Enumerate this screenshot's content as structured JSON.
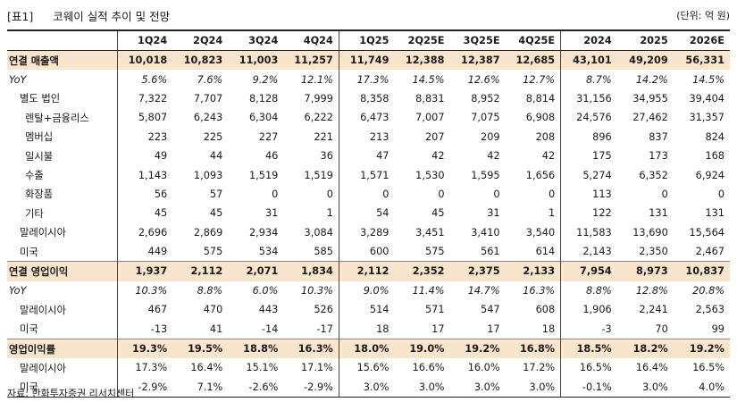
{
  "header": {
    "tag": "[표1]",
    "title": "코웨이 실적 추이 및 전망",
    "unit": "(단위: 억 원)"
  },
  "columns": [
    "",
    "1Q24",
    "2Q24",
    "3Q24",
    "4Q24",
    "1Q25",
    "2Q25E",
    "3Q25E",
    "4Q25E",
    "2024",
    "2025",
    "2026E"
  ],
  "rows": [
    {
      "label": "연결 매출액",
      "style": "hl",
      "indent": 0,
      "values": [
        "10,018",
        "10,823",
        "11,003",
        "11,257",
        "11,749",
        "12,388",
        "12,387",
        "12,685",
        "43,101",
        "49,209",
        "56,331"
      ]
    },
    {
      "label": "YoY",
      "style": "yoy",
      "indent": 0,
      "values": [
        "5.6%",
        "7.6%",
        "9.2%",
        "12.1%",
        "17.3%",
        "14.5%",
        "12.6%",
        "12.7%",
        "8.7%",
        "14.2%",
        "14.5%"
      ]
    },
    {
      "label": "별도 법인",
      "style": "",
      "indent": 1,
      "values": [
        "7,322",
        "7,707",
        "8,128",
        "7,999",
        "8,358",
        "8,831",
        "8,952",
        "8,814",
        "31,156",
        "34,955",
        "39,404"
      ]
    },
    {
      "label": "렌탈+금융리스",
      "style": "",
      "indent": 2,
      "values": [
        "5,807",
        "6,243",
        "6,304",
        "6,222",
        "6,473",
        "7,007",
        "7,075",
        "6,908",
        "24,576",
        "27,462",
        "31,357"
      ]
    },
    {
      "label": "멤버십",
      "style": "",
      "indent": 2,
      "values": [
        "223",
        "225",
        "227",
        "221",
        "213",
        "207",
        "209",
        "208",
        "896",
        "837",
        "824"
      ]
    },
    {
      "label": "일시불",
      "style": "",
      "indent": 2,
      "values": [
        "49",
        "44",
        "46",
        "36",
        "47",
        "42",
        "42",
        "42",
        "175",
        "173",
        "168"
      ]
    },
    {
      "label": "수출",
      "style": "",
      "indent": 2,
      "values": [
        "1,143",
        "1,093",
        "1,519",
        "1,519",
        "1,571",
        "1,530",
        "1,595",
        "1,656",
        "5,274",
        "6,352",
        "6,924"
      ]
    },
    {
      "label": "화장품",
      "style": "",
      "indent": 2,
      "values": [
        "56",
        "57",
        "0",
        "0",
        "0",
        "0",
        "0",
        "0",
        "113",
        "0",
        "0"
      ]
    },
    {
      "label": "기타",
      "style": "",
      "indent": 2,
      "values": [
        "45",
        "45",
        "31",
        "1",
        "54",
        "45",
        "31",
        "1",
        "122",
        "131",
        "131"
      ]
    },
    {
      "label": "말레이시아",
      "style": "",
      "indent": 1,
      "values": [
        "2,696",
        "2,869",
        "2,934",
        "3,084",
        "3,289",
        "3,451",
        "3,410",
        "3,540",
        "11,583",
        "13,690",
        "15,564"
      ]
    },
    {
      "label": "미국",
      "style": "",
      "indent": 1,
      "values": [
        "449",
        "575",
        "534",
        "585",
        "600",
        "575",
        "561",
        "614",
        "2,143",
        "2,350",
        "2,467"
      ]
    },
    {
      "label": "연결 영업이익",
      "style": "hl",
      "indent": 0,
      "values": [
        "1,937",
        "2,112",
        "2,071",
        "1,834",
        "2,112",
        "2,352",
        "2,375",
        "2,133",
        "7,954",
        "8,973",
        "10,837"
      ]
    },
    {
      "label": "YoY",
      "style": "yoy",
      "indent": 0,
      "values": [
        "10.3%",
        "8.8%",
        "6.0%",
        "10.3%",
        "9.0%",
        "11.4%",
        "14.7%",
        "16.3%",
        "8.8%",
        "12.8%",
        "20.8%"
      ]
    },
    {
      "label": "말레이시아",
      "style": "",
      "indent": 1,
      "values": [
        "467",
        "470",
        "443",
        "526",
        "514",
        "571",
        "547",
        "608",
        "1,906",
        "2,241",
        "2,563"
      ]
    },
    {
      "label": "미국",
      "style": "",
      "indent": 1,
      "values": [
        "-13",
        "41",
        "-14",
        "-17",
        "18",
        "17",
        "17",
        "18",
        "-3",
        "70",
        "99"
      ]
    },
    {
      "label": "영업이익률",
      "style": "hl",
      "indent": 0,
      "values": [
        "19.3%",
        "19.5%",
        "18.8%",
        "16.3%",
        "18.0%",
        "19.0%",
        "19.2%",
        "16.8%",
        "18.5%",
        "18.2%",
        "19.2%"
      ]
    },
    {
      "label": "말레이시아",
      "style": "",
      "indent": 1,
      "values": [
        "17.3%",
        "16.4%",
        "15.1%",
        "17.1%",
        "15.6%",
        "16.6%",
        "16.0%",
        "17.2%",
        "16.5%",
        "16.4%",
        "16.5%"
      ]
    },
    {
      "label": "미국",
      "style": "",
      "indent": 1,
      "values": [
        "-2.9%",
        "7.1%",
        "-2.6%",
        "-2.9%",
        "3.0%",
        "3.0%",
        "3.0%",
        "3.0%",
        "-0.1%",
        "3.0%",
        "4.0%"
      ]
    }
  ],
  "footer": {
    "source": "자료: 한화투자증권 리서치센터"
  },
  "colors": {
    "highlight": "#f9e4cc"
  }
}
